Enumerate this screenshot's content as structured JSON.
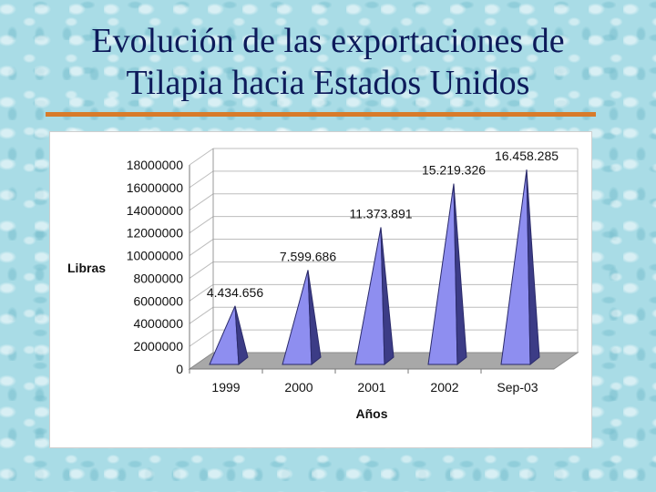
{
  "slide": {
    "title_line1": "Evolución de las exportaciones de",
    "title_line2": "Tilapia hacia Estados Unidos",
    "colors": {
      "background": "#a9dce6",
      "title": "#0d1a5a",
      "rule": "#d87b2a",
      "bar_front": "#8e8ef0",
      "bar_side": "#3c3c86"
    }
  },
  "chart_data": {
    "type": "bar",
    "style": "3d-pyramid",
    "categories": [
      "1999",
      "2000",
      "2001",
      "2002",
      "Sep-03"
    ],
    "values": [
      4434656,
      7599686,
      11373891,
      15219326,
      16458285
    ],
    "data_labels": [
      "4.434.656",
      "7.599.686",
      "11.373.891",
      "15.219.326",
      "16.458.285"
    ],
    "y_ticks": [
      "0",
      "2000000",
      "4000000",
      "6000000",
      "8000000",
      "10000000",
      "12000000",
      "14000000",
      "16000000",
      "18000000"
    ],
    "ylim": [
      0,
      18000000
    ],
    "ylabel": "Libras",
    "xlabel": "Años",
    "grid": true,
    "legend": false
  }
}
